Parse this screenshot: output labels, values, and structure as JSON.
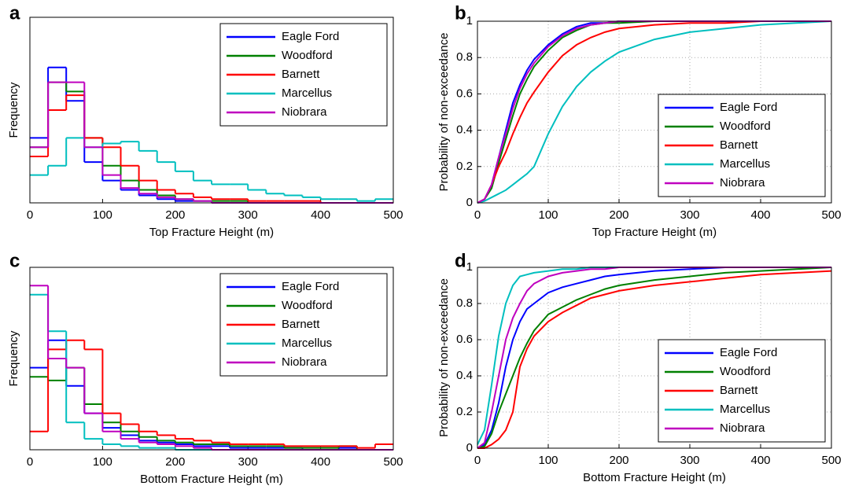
{
  "chart_data": [
    {
      "type": "histogram",
      "label": "a",
      "xlabel": "Top Fracture Height  (m)",
      "ylabel": "Frequency",
      "bins": [
        0,
        25,
        50,
        75,
        100,
        125,
        150,
        175,
        200,
        225,
        250,
        275,
        300,
        325,
        350,
        375,
        400,
        425,
        450,
        475,
        500
      ],
      "xlim": [
        0,
        500
      ],
      "xticks": [
        0,
        100,
        200,
        300,
        400,
        500
      ],
      "ylim": [
        0,
        1
      ],
      "legend": "upper right",
      "series": [
        {
          "name": "Eagle Ford",
          "color": "#0000ff",
          "values": [
            0.35,
            0.73,
            0.55,
            0.22,
            0.12,
            0.07,
            0.04,
            0.02,
            0.01,
            0.01,
            0,
            0,
            0,
            0,
            0,
            0,
            0,
            0,
            0,
            0
          ]
        },
        {
          "name": "Woodford",
          "color": "#008000",
          "values": [
            0.3,
            0.65,
            0.6,
            0.35,
            0.2,
            0.12,
            0.07,
            0.04,
            0.02,
            0.01,
            0.01,
            0.01,
            0,
            0,
            0,
            0,
            0,
            0,
            0,
            0
          ]
        },
        {
          "name": "Barnett",
          "color": "#ff0000",
          "values": [
            0.25,
            0.5,
            0.58,
            0.35,
            0.3,
            0.2,
            0.12,
            0.07,
            0.05,
            0.03,
            0.02,
            0.02,
            0.01,
            0.01,
            0.01,
            0.01,
            0,
            0,
            0,
            0
          ]
        },
        {
          "name": "Marcellus",
          "color": "#00bfbf",
          "values": [
            0.15,
            0.2,
            0.35,
            0.3,
            0.32,
            0.33,
            0.28,
            0.22,
            0.17,
            0.12,
            0.1,
            0.1,
            0.07,
            0.05,
            0.04,
            0.03,
            0.02,
            0.02,
            0.01,
            0.02
          ]
        },
        {
          "name": "Niobrara",
          "color": "#bf00bf",
          "values": [
            0.3,
            0.65,
            0.65,
            0.3,
            0.15,
            0.08,
            0.05,
            0.03,
            0.02,
            0.01,
            0,
            0,
            0,
            0,
            0,
            0,
            0,
            0,
            0,
            0
          ]
        }
      ]
    },
    {
      "type": "line",
      "label": "b",
      "xlabel": "Top Fracture Height  (m)",
      "ylabel": "Probability of non-exceedance",
      "x": [
        0,
        10,
        20,
        30,
        40,
        50,
        60,
        70,
        80,
        100,
        120,
        140,
        160,
        180,
        200,
        250,
        300,
        350,
        400,
        450,
        500
      ],
      "xlim": [
        0,
        500
      ],
      "xticks": [
        0,
        100,
        200,
        300,
        400,
        500
      ],
      "ylim": [
        0,
        1
      ],
      "yticks": [
        0,
        0.2,
        0.4,
        0.6,
        0.8,
        1
      ],
      "grid": true,
      "legend": "lower right",
      "series": [
        {
          "name": "Eagle Ford",
          "color": "#0000ff",
          "values": [
            0,
            0.02,
            0.1,
            0.25,
            0.4,
            0.55,
            0.65,
            0.73,
            0.79,
            0.87,
            0.93,
            0.97,
            0.99,
            0.99,
            1,
            1,
            1,
            1,
            1,
            1,
            1
          ]
        },
        {
          "name": "Woodford",
          "color": "#008000",
          "values": [
            0,
            0.02,
            0.08,
            0.22,
            0.35,
            0.48,
            0.6,
            0.68,
            0.75,
            0.84,
            0.91,
            0.95,
            0.98,
            0.99,
            0.99,
            1,
            1,
            1,
            1,
            1,
            1
          ]
        },
        {
          "name": "Barnett",
          "color": "#ff0000",
          "values": [
            0,
            0.02,
            0.1,
            0.2,
            0.28,
            0.38,
            0.47,
            0.55,
            0.61,
            0.72,
            0.81,
            0.87,
            0.91,
            0.94,
            0.96,
            0.98,
            0.99,
            0.99,
            1,
            1,
            1
          ]
        },
        {
          "name": "Marcellus",
          "color": "#00bfbf",
          "values": [
            0,
            0.01,
            0.03,
            0.05,
            0.07,
            0.1,
            0.13,
            0.16,
            0.2,
            0.38,
            0.53,
            0.64,
            0.72,
            0.78,
            0.83,
            0.9,
            0.94,
            0.96,
            0.98,
            0.99,
            1
          ]
        },
        {
          "name": "Niobrara",
          "color": "#bf00bf",
          "values": [
            0,
            0.02,
            0.1,
            0.25,
            0.38,
            0.52,
            0.63,
            0.71,
            0.77,
            0.86,
            0.92,
            0.96,
            0.98,
            0.99,
            1,
            1,
            1,
            1,
            1,
            1,
            1
          ]
        }
      ]
    },
    {
      "type": "histogram",
      "label": "c",
      "xlabel": "Bottom Fracture Height  (m)",
      "ylabel": "Frequency",
      "bins": [
        0,
        25,
        50,
        75,
        100,
        125,
        150,
        175,
        200,
        225,
        250,
        275,
        300,
        325,
        350,
        375,
        400,
        425,
        450,
        475,
        500
      ],
      "xlim": [
        0,
        500
      ],
      "xticks": [
        0,
        100,
        200,
        300,
        400,
        500
      ],
      "ylim": [
        0,
        1
      ],
      "legend": "upper right",
      "series": [
        {
          "name": "Eagle Ford",
          "color": "#0000ff",
          "values": [
            0.45,
            0.6,
            0.35,
            0.2,
            0.12,
            0.08,
            0.05,
            0.04,
            0.03,
            0.02,
            0.02,
            0.01,
            0.01,
            0.01,
            0.01,
            0,
            0,
            0.01,
            0,
            0
          ]
        },
        {
          "name": "Woodford",
          "color": "#008000",
          "values": [
            0.4,
            0.38,
            0.45,
            0.25,
            0.15,
            0.1,
            0.07,
            0.05,
            0.04,
            0.03,
            0.03,
            0.02,
            0.02,
            0.02,
            0.01,
            0.01,
            0.01,
            0.02,
            0,
            0
          ]
        },
        {
          "name": "Barnett",
          "color": "#ff0000",
          "values": [
            0.1,
            0.55,
            0.6,
            0.55,
            0.2,
            0.14,
            0.1,
            0.08,
            0.06,
            0.05,
            0.04,
            0.03,
            0.03,
            0.03,
            0.02,
            0.02,
            0.02,
            0.02,
            0.01,
            0.03
          ]
        },
        {
          "name": "Marcellus",
          "color": "#00bfbf",
          "values": [
            0.85,
            0.65,
            0.15,
            0.06,
            0.03,
            0.02,
            0.01,
            0.01,
            0,
            0,
            0,
            0,
            0,
            0,
            0,
            0,
            0,
            0,
            0,
            0
          ]
        },
        {
          "name": "Niobrara",
          "color": "#bf00bf",
          "values": [
            0.9,
            0.5,
            0.45,
            0.2,
            0.1,
            0.06,
            0.04,
            0.03,
            0.02,
            0.01,
            0,
            0,
            0,
            0,
            0,
            0,
            0,
            0,
            0,
            0
          ]
        }
      ]
    },
    {
      "type": "line",
      "label": "d",
      "xlabel": "Bottom Fracture Height  (m)",
      "ylabel": "Probability of non-exceedance",
      "x": [
        0,
        10,
        20,
        30,
        40,
        50,
        60,
        70,
        80,
        100,
        120,
        140,
        160,
        180,
        200,
        250,
        300,
        350,
        400,
        450,
        500
      ],
      "xlim": [
        0,
        500
      ],
      "xticks": [
        0,
        100,
        200,
        300,
        400,
        500
      ],
      "ylim": [
        0,
        1
      ],
      "yticks": [
        0,
        0.2,
        0.4,
        0.6,
        0.8,
        1
      ],
      "grid": true,
      "legend": "lower right",
      "series": [
        {
          "name": "Eagle Ford",
          "color": "#0000ff",
          "values": [
            0,
            0.02,
            0.1,
            0.25,
            0.45,
            0.6,
            0.7,
            0.77,
            0.8,
            0.86,
            0.89,
            0.91,
            0.93,
            0.95,
            0.96,
            0.98,
            0.99,
            1,
            1,
            1,
            1
          ]
        },
        {
          "name": "Woodford",
          "color": "#008000",
          "values": [
            0,
            0.01,
            0.08,
            0.2,
            0.3,
            0.4,
            0.5,
            0.58,
            0.65,
            0.74,
            0.78,
            0.82,
            0.85,
            0.88,
            0.9,
            0.93,
            0.95,
            0.97,
            0.98,
            0.99,
            1
          ]
        },
        {
          "name": "Barnett",
          "color": "#ff0000",
          "values": [
            0,
            0,
            0.02,
            0.05,
            0.1,
            0.2,
            0.45,
            0.55,
            0.62,
            0.7,
            0.75,
            0.79,
            0.83,
            0.85,
            0.87,
            0.9,
            0.92,
            0.94,
            0.96,
            0.97,
            0.98
          ]
        },
        {
          "name": "Marcellus",
          "color": "#00bfbf",
          "values": [
            0.02,
            0.1,
            0.35,
            0.62,
            0.8,
            0.9,
            0.95,
            0.96,
            0.97,
            0.98,
            0.99,
            0.99,
            1,
            1,
            1,
            1,
            1,
            1,
            1,
            1,
            1
          ]
        },
        {
          "name": "Niobrara",
          "color": "#bf00bf",
          "values": [
            0,
            0.03,
            0.2,
            0.4,
            0.6,
            0.72,
            0.8,
            0.87,
            0.91,
            0.95,
            0.97,
            0.98,
            0.99,
            0.99,
            1,
            1,
            1,
            1,
            1,
            1,
            1
          ]
        }
      ]
    }
  ]
}
